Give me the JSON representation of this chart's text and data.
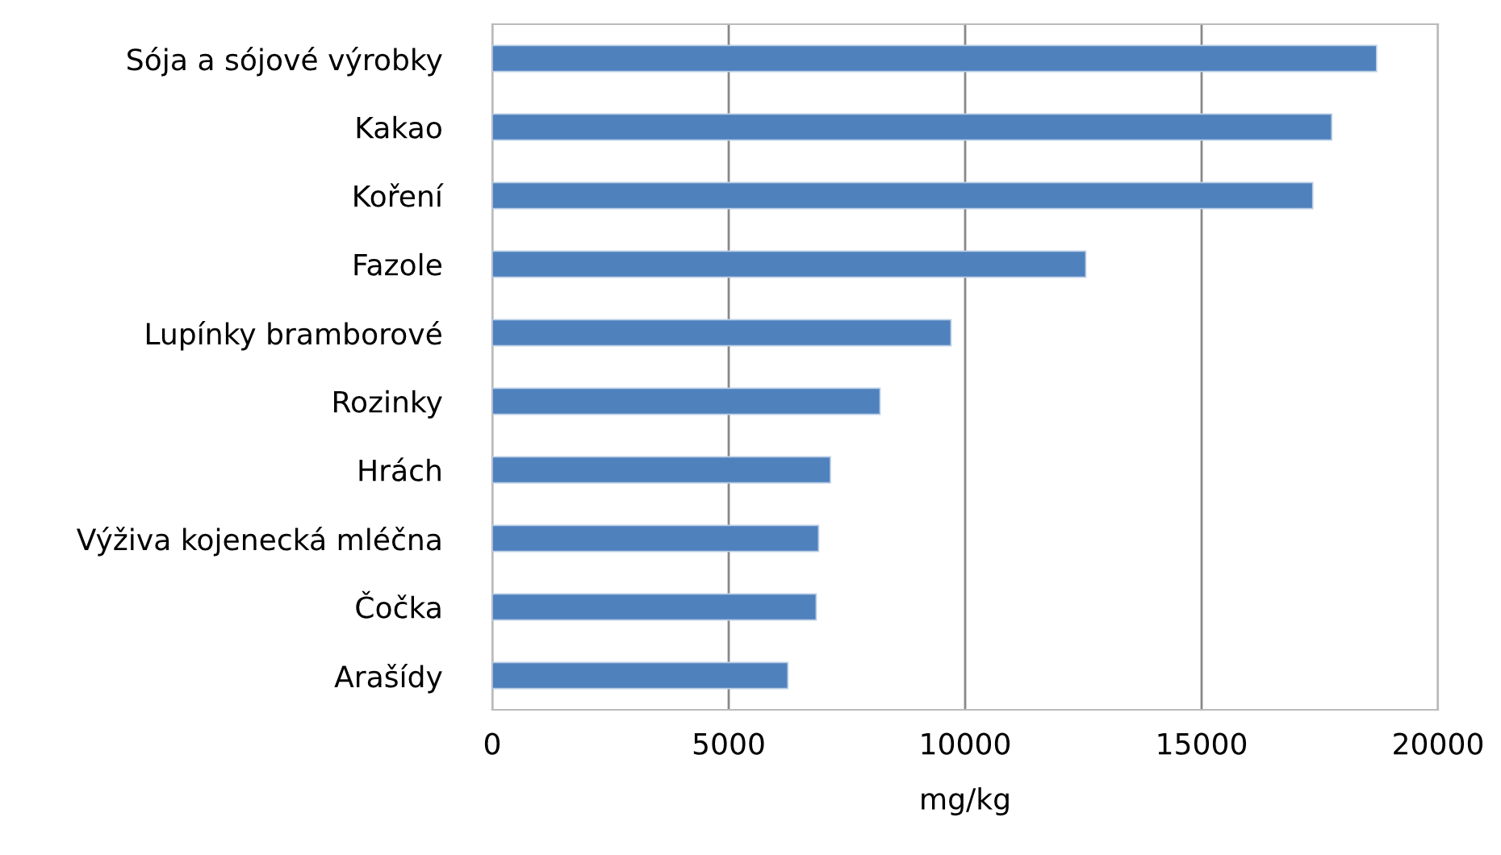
{
  "chart_data": {
    "type": "bar",
    "orientation": "horizontal",
    "xlabel": "mg/kg",
    "categories": [
      "Sója a sójové výrobky",
      "Kakao",
      "Koření",
      "Fazole",
      "Lupínky bramborové",
      "Rozinky",
      "Hrách",
      "Výživa kojenecká mléčna",
      "Čočka",
      "Arašídy"
    ],
    "values": [
      18700,
      17750,
      17350,
      12550,
      9700,
      8200,
      7150,
      6900,
      6850,
      6250
    ],
    "color": "#4f81bd",
    "xlim": [
      0,
      20000
    ],
    "xticks": [
      0,
      5000,
      10000,
      15000,
      20000
    ],
    "grid": "x"
  }
}
